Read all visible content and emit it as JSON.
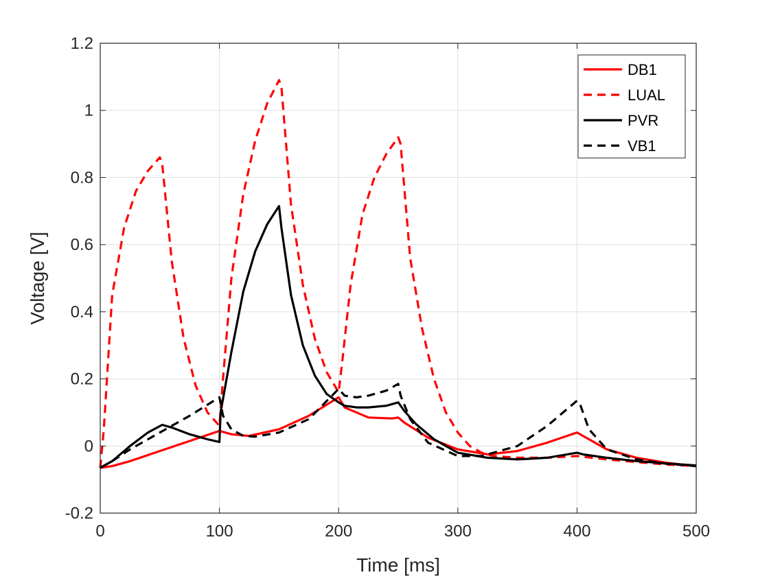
{
  "chart_data": {
    "type": "line",
    "title": "",
    "xlabel": "Time [ms]",
    "ylabel": "Voltage [V]",
    "xlim": [
      0,
      500
    ],
    "ylim": [
      -0.2,
      1.2
    ],
    "xticks": [
      0,
      100,
      200,
      300,
      400,
      500
    ],
    "yticks": [
      -0.2,
      0,
      0.2,
      0.4,
      0.6,
      0.8,
      1,
      1.2
    ],
    "xtick_labels": [
      "0",
      "100",
      "200",
      "300",
      "400",
      "500"
    ],
    "ytick_labels": [
      "-0.2",
      "0",
      "0.2",
      "0.4",
      "0.6",
      "0.8",
      "1",
      "1.2"
    ],
    "grid": true,
    "legend_position": "top-right",
    "series": [
      {
        "name": "DB1",
        "color": "#ff0000",
        "style": "solid",
        "x": [
          0,
          10,
          25,
          50,
          75,
          100,
          110,
          125,
          150,
          175,
          200,
          205,
          225,
          245,
          250,
          255,
          275,
          300,
          325,
          350,
          375,
          400,
          405,
          425,
          450,
          475,
          500
        ],
        "y": [
          -0.065,
          -0.06,
          -0.045,
          -0.015,
          0.015,
          0.045,
          0.035,
          0.03,
          0.05,
          0.09,
          0.145,
          0.115,
          0.085,
          0.082,
          0.085,
          0.07,
          0.025,
          -0.01,
          -0.025,
          -0.015,
          0.01,
          0.04,
          0.03,
          -0.01,
          -0.035,
          -0.05,
          -0.06
        ]
      },
      {
        "name": "LUAL",
        "color": "#ff0000",
        "style": "dashed",
        "x": [
          0,
          3,
          10,
          20,
          30,
          40,
          50,
          52,
          60,
          70,
          80,
          90,
          100,
          103,
          110,
          120,
          130,
          140,
          150,
          152,
          160,
          170,
          180,
          190,
          200,
          203,
          210,
          220,
          230,
          240,
          250,
          252,
          260,
          270,
          280,
          290,
          300,
          310,
          320,
          330,
          350,
          375,
          400,
          425,
          450,
          475,
          500
        ],
        "y": [
          -0.065,
          0.05,
          0.45,
          0.65,
          0.76,
          0.82,
          0.86,
          0.84,
          0.55,
          0.32,
          0.18,
          0.1,
          0.06,
          0.2,
          0.5,
          0.75,
          0.91,
          1.02,
          1.09,
          1.07,
          0.72,
          0.48,
          0.32,
          0.22,
          0.16,
          0.25,
          0.48,
          0.69,
          0.8,
          0.87,
          0.92,
          0.9,
          0.56,
          0.35,
          0.2,
          0.1,
          0.04,
          0.0,
          -0.02,
          -0.03,
          -0.035,
          -0.035,
          -0.03,
          -0.04,
          -0.048,
          -0.055,
          -0.06
        ]
      },
      {
        "name": "PVR",
        "color": "#000000",
        "style": "solid",
        "x": [
          0,
          10,
          25,
          40,
          52,
          60,
          75,
          90,
          100,
          101,
          110,
          120,
          130,
          140,
          150,
          152,
          160,
          170,
          180,
          190,
          200,
          205,
          215,
          225,
          240,
          250,
          255,
          265,
          280,
          300,
          325,
          350,
          375,
          400,
          405,
          425,
          450,
          475,
          500
        ],
        "y": [
          -0.065,
          -0.045,
          0.0,
          0.04,
          0.063,
          0.055,
          0.035,
          0.02,
          0.012,
          0.1,
          0.28,
          0.46,
          0.58,
          0.66,
          0.715,
          0.65,
          0.45,
          0.3,
          0.21,
          0.155,
          0.13,
          0.12,
          0.115,
          0.115,
          0.12,
          0.13,
          0.105,
          0.065,
          0.02,
          -0.02,
          -0.035,
          -0.04,
          -0.035,
          -0.02,
          -0.025,
          -0.035,
          -0.045,
          -0.052,
          -0.058
        ]
      },
      {
        "name": "VB1",
        "color": "#000000",
        "style": "dashed",
        "x": [
          0,
          10,
          25,
          50,
          75,
          100,
          103,
          110,
          120,
          130,
          150,
          175,
          200,
          205,
          215,
          225,
          240,
          250,
          252,
          260,
          275,
          300,
          320,
          350,
          375,
          400,
          403,
          410,
          425,
          450,
          475,
          500
        ],
        "y": [
          -0.065,
          -0.045,
          -0.01,
          0.04,
          0.09,
          0.145,
          0.09,
          0.05,
          0.03,
          0.028,
          0.04,
          0.08,
          0.17,
          0.15,
          0.145,
          0.15,
          0.165,
          0.185,
          0.15,
          0.08,
          0.01,
          -0.03,
          -0.03,
          0.0,
          0.06,
          0.135,
          0.12,
          0.05,
          -0.01,
          -0.04,
          -0.053,
          -0.06
        ]
      }
    ]
  }
}
